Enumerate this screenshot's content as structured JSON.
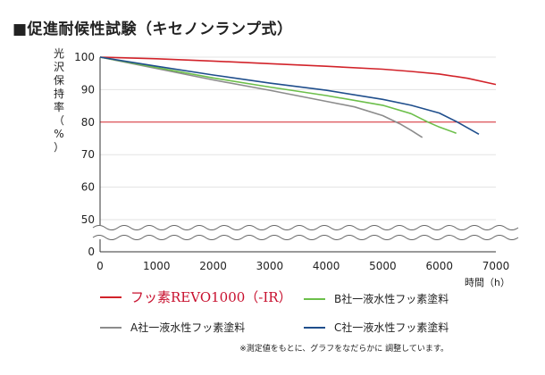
{
  "title": "■促進耐候性試験（キセノンランプ式）",
  "footnote": "※測定値をもとに、グラフをなだらかに 調整しています。",
  "chart_data": {
    "type": "line",
    "title": "促進耐候性試験（キセノンランプ式）",
    "xlabel": "時間（h）",
    "ylabel": "光沢保持率（%）",
    "xlim": [
      0,
      7000
    ],
    "ylim": [
      0,
      100
    ],
    "y_axis_break": [
      0,
      50
    ],
    "x_ticks": [
      0,
      1000,
      2000,
      3000,
      4000,
      5000,
      6000,
      7000
    ],
    "y_ticks": [
      0,
      50,
      60,
      70,
      80,
      90,
      100
    ],
    "reference_line": {
      "y": 80,
      "color": "#d2232a"
    },
    "grid": "horizontal",
    "legend_position": "bottom",
    "series": [
      {
        "name": "フッ素REVO1000（-IR）",
        "color": "#d2232a",
        "x": [
          0,
          1000,
          2000,
          3000,
          4000,
          5000,
          5500,
          6000,
          6500,
          7000
        ],
        "y": [
          100,
          99.5,
          98.8,
          98,
          97.2,
          96.3,
          95.6,
          94.8,
          93.5,
          91.6
        ]
      },
      {
        "name": "A社一液水性フッ素塗料",
        "color": "#8c8c8c",
        "x": [
          0,
          1000,
          2000,
          3000,
          4000,
          4500,
          5000,
          5300,
          5500,
          5700
        ],
        "y": [
          100,
          96.5,
          93,
          89.8,
          86.4,
          84.7,
          82,
          79.5,
          77.5,
          75.3
        ]
      },
      {
        "name": "B社一液水性フッ素塗料",
        "color": "#6cbf4a",
        "x": [
          0,
          1000,
          2000,
          3000,
          4000,
          5000,
          5500,
          5800,
          6000,
          6300
        ],
        "y": [
          100,
          96.8,
          93.6,
          90.8,
          88.2,
          85.2,
          82.6,
          80,
          78.5,
          76.6
        ]
      },
      {
        "name": "C社一液水性フッ素塗料",
        "color": "#1f4e8c",
        "x": [
          0,
          1000,
          2000,
          3000,
          4000,
          5000,
          5500,
          6000,
          6300,
          6700
        ],
        "y": [
          100,
          97.2,
          94.5,
          92,
          89.8,
          87,
          85.2,
          82.8,
          80.2,
          76.3
        ]
      }
    ]
  }
}
